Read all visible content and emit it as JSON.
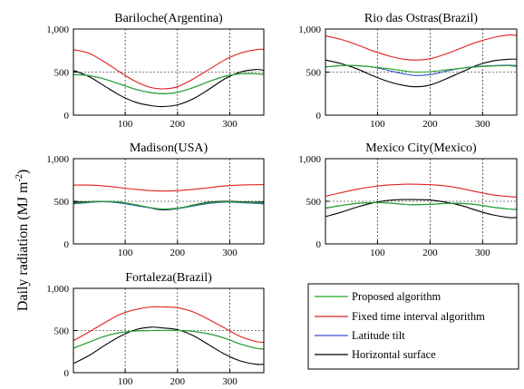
{
  "figure": {
    "ylabel": "Daily radiation (MJ m",
    "ylabel_sup": "-2",
    "ylabel_close": ")"
  },
  "legend": [
    {
      "name": "Proposed algorithm",
      "color": "#22a822"
    },
    {
      "name": "Fixed time interval algorithm",
      "color": "#e02020"
    },
    {
      "name": "Latitude tilt",
      "color": "#3355cc"
    },
    {
      "name": "Horizontal surface",
      "color": "#000000"
    }
  ],
  "chart_data": [
    {
      "type": "line",
      "title": "Bariloche(Argentina)",
      "xlim": [
        1,
        365
      ],
      "ylim": [
        0,
        1000
      ],
      "xticks": [
        "100",
        "200",
        "300"
      ],
      "yticks": [
        "0",
        "500",
        "1,000"
      ],
      "grid": true,
      "x": [
        1,
        30,
        60,
        90,
        120,
        150,
        172,
        200,
        230,
        260,
        290,
        320,
        350,
        365
      ],
      "series": [
        {
          "name": "Proposed algorithm",
          "values": [
            470,
            460,
            420,
            360,
            300,
            260,
            250,
            265,
            320,
            390,
            450,
            480,
            480,
            475
          ]
        },
        {
          "name": "Fixed time interval algorithm",
          "values": [
            760,
            720,
            620,
            500,
            390,
            320,
            305,
            330,
            420,
            530,
            640,
            720,
            760,
            765
          ]
        },
        {
          "name": "Latitude tilt",
          "values": [
            470,
            460,
            420,
            360,
            300,
            260,
            250,
            265,
            320,
            390,
            450,
            480,
            480,
            475
          ]
        },
        {
          "name": "Horizontal surface",
          "values": [
            520,
            450,
            340,
            230,
            150,
            110,
            100,
            120,
            190,
            300,
            420,
            500,
            530,
            520
          ]
        }
      ]
    },
    {
      "type": "line",
      "title": "Rio das Ostras(Brazil)",
      "xlim": [
        1,
        365
      ],
      "ylim": [
        0,
        1000
      ],
      "xticks": [
        "100",
        "200",
        "300"
      ],
      "yticks": [
        "0",
        "500",
        "1,000"
      ],
      "grid": true,
      "x": [
        1,
        30,
        60,
        90,
        120,
        150,
        172,
        200,
        230,
        260,
        290,
        320,
        350,
        365
      ],
      "series": [
        {
          "name": "Proposed algorithm",
          "values": [
            560,
            575,
            575,
            560,
            540,
            515,
            500,
            505,
            525,
            545,
            560,
            570,
            575,
            565
          ]
        },
        {
          "name": "Fixed time interval algorithm",
          "values": [
            920,
            880,
            820,
            750,
            690,
            650,
            640,
            655,
            710,
            780,
            850,
            900,
            930,
            925
          ]
        },
        {
          "name": "Latitude tilt",
          "values": [
            560,
            575,
            575,
            560,
            520,
            480,
            460,
            470,
            510,
            545,
            565,
            575,
            580,
            575
          ]
        },
        {
          "name": "Horizontal surface",
          "values": [
            640,
            600,
            540,
            460,
            390,
            345,
            330,
            350,
            420,
            500,
            580,
            630,
            650,
            650
          ]
        }
      ]
    },
    {
      "type": "line",
      "title": "Madison(USA)",
      "xlim": [
        1,
        365
      ],
      "ylim": [
        0,
        1000
      ],
      "xticks": [
        "100",
        "200",
        "300"
      ],
      "yticks": [
        "0",
        "500",
        "1,000"
      ],
      "grid": true,
      "x": [
        1,
        30,
        60,
        90,
        120,
        150,
        172,
        200,
        230,
        260,
        290,
        320,
        350,
        365
      ],
      "series": [
        {
          "name": "Proposed algorithm",
          "values": [
            480,
            490,
            500,
            490,
            460,
            425,
            410,
            420,
            450,
            485,
            495,
            490,
            485,
            480
          ]
        },
        {
          "name": "Fixed time interval algorithm",
          "values": [
            690,
            690,
            680,
            660,
            640,
            625,
            620,
            625,
            640,
            660,
            680,
            690,
            695,
            695
          ]
        },
        {
          "name": "Latitude tilt",
          "values": [
            470,
            485,
            495,
            480,
            450,
            420,
            405,
            415,
            445,
            475,
            490,
            485,
            475,
            470
          ]
        },
        {
          "name": "Horizontal surface",
          "values": [
            490,
            495,
            500,
            490,
            460,
            420,
            400,
            415,
            455,
            490,
            500,
            495,
            490,
            490
          ]
        }
      ]
    },
    {
      "type": "line",
      "title": "Mexico City(Mexico)",
      "xlim": [
        1,
        365
      ],
      "ylim": [
        0,
        1000
      ],
      "xticks": [
        "100",
        "200",
        "300"
      ],
      "yticks": [
        "0",
        "500",
        "1,000"
      ],
      "grid": true,
      "x": [
        1,
        30,
        60,
        90,
        120,
        150,
        172,
        200,
        230,
        260,
        290,
        320,
        350,
        365
      ],
      "series": [
        {
          "name": "Proposed algorithm",
          "values": [
            420,
            450,
            475,
            485,
            480,
            465,
            460,
            465,
            475,
            475,
            460,
            430,
            410,
            405
          ]
        },
        {
          "name": "Fixed time interval algorithm",
          "values": [
            560,
            600,
            640,
            670,
            690,
            700,
            700,
            695,
            680,
            650,
            610,
            575,
            555,
            550
          ]
        },
        {
          "name": "Latitude tilt",
          "values": [
            420,
            450,
            475,
            485,
            480,
            465,
            460,
            465,
            475,
            475,
            460,
            430,
            410,
            405
          ]
        },
        {
          "name": "Horizontal surface",
          "values": [
            320,
            370,
            430,
            480,
            510,
            520,
            520,
            515,
            490,
            450,
            390,
            340,
            310,
            310
          ]
        }
      ]
    },
    {
      "type": "line",
      "title": "Fortaleza(Brazil)",
      "xlim": [
        1,
        365
      ],
      "ylim": [
        0,
        1000
      ],
      "xticks": [
        "100",
        "200",
        "300"
      ],
      "yticks": [
        "0",
        "500",
        "1,000"
      ],
      "grid": true,
      "x": [
        1,
        30,
        60,
        90,
        120,
        150,
        172,
        200,
        230,
        260,
        290,
        320,
        350,
        365
      ],
      "series": [
        {
          "name": "Proposed algorithm",
          "values": [
            290,
            360,
            430,
            475,
            495,
            500,
            500,
            500,
            490,
            460,
            410,
            340,
            290,
            280
          ]
        },
        {
          "name": "Fixed time interval algorithm",
          "values": [
            380,
            480,
            590,
            690,
            750,
            780,
            780,
            770,
            720,
            630,
            530,
            430,
            370,
            360
          ]
        },
        {
          "name": "Latitude tilt",
          "values": [
            290,
            360,
            430,
            475,
            495,
            500,
            500,
            500,
            490,
            460,
            410,
            340,
            290,
            280
          ]
        },
        {
          "name": "Horizontal surface",
          "values": [
            110,
            200,
            320,
            430,
            510,
            540,
            530,
            510,
            440,
            330,
            220,
            140,
            100,
            100
          ]
        }
      ]
    }
  ]
}
